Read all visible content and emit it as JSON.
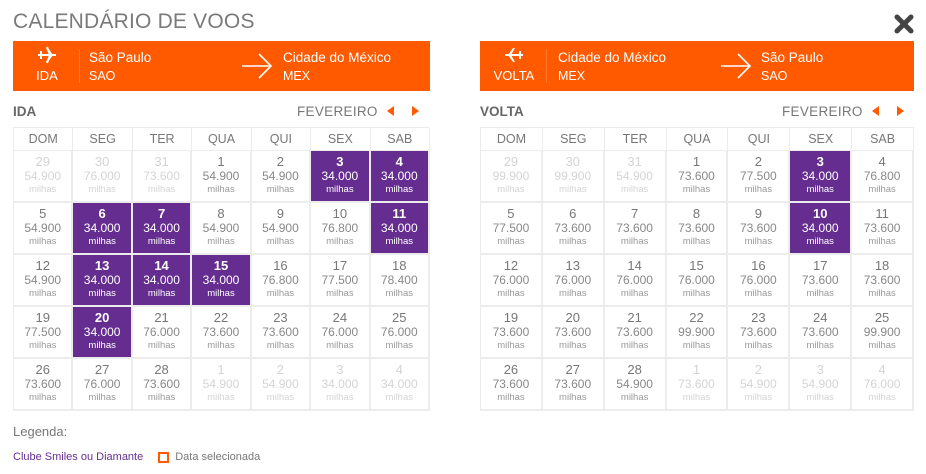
{
  "title": "CALENDÁRIO DE VOOS",
  "close_icon": "close-x-icon",
  "colors": {
    "brand_orange": "#ff5a00",
    "club_purple": "#662d91"
  },
  "weekdays": [
    "DOM",
    "SEG",
    "TER",
    "QUA",
    "QUI",
    "SEX",
    "SAB"
  ],
  "unit": "milhas",
  "ida": {
    "direction_label": "IDA",
    "icon": "plane-departure-icon",
    "origin": {
      "city": "São Paulo",
      "code": "SAO"
    },
    "destination": {
      "city": "Cidade do México",
      "code": "MEX"
    },
    "section_label": "IDA",
    "month": "FEVEREIRO",
    "days": [
      {
        "day": "29",
        "price": "54.900",
        "other": true
      },
      {
        "day": "30",
        "price": "76.000",
        "other": true
      },
      {
        "day": "31",
        "price": "73.600",
        "other": true
      },
      {
        "day": "1",
        "price": "54.900"
      },
      {
        "day": "2",
        "price": "54.900"
      },
      {
        "day": "3",
        "price": "34.000",
        "club": true
      },
      {
        "day": "4",
        "price": "34.000",
        "club": true
      },
      {
        "day": "5",
        "price": "54.900"
      },
      {
        "day": "6",
        "price": "34.000",
        "club": true
      },
      {
        "day": "7",
        "price": "34.000",
        "club": true
      },
      {
        "day": "8",
        "price": "54.900"
      },
      {
        "day": "9",
        "price": "54.900"
      },
      {
        "day": "10",
        "price": "76.800"
      },
      {
        "day": "11",
        "price": "34.000",
        "club": true
      },
      {
        "day": "12",
        "price": "54.900"
      },
      {
        "day": "13",
        "price": "34.000",
        "club": true
      },
      {
        "day": "14",
        "price": "34.000",
        "club": true
      },
      {
        "day": "15",
        "price": "34.000",
        "club": true
      },
      {
        "day": "16",
        "price": "76.800"
      },
      {
        "day": "17",
        "price": "77.500"
      },
      {
        "day": "18",
        "price": "78.400"
      },
      {
        "day": "19",
        "price": "77.500"
      },
      {
        "day": "20",
        "price": "34.000",
        "club": true
      },
      {
        "day": "21",
        "price": "76.000"
      },
      {
        "day": "22",
        "price": "73.600"
      },
      {
        "day": "23",
        "price": "73.600"
      },
      {
        "day": "24",
        "price": "76.000"
      },
      {
        "day": "25",
        "price": "76.000"
      },
      {
        "day": "26",
        "price": "73.600"
      },
      {
        "day": "27",
        "price": "76.000"
      },
      {
        "day": "28",
        "price": "73.600"
      },
      {
        "day": "1",
        "price": "54.900",
        "other": true
      },
      {
        "day": "2",
        "price": "54.900",
        "other": true
      },
      {
        "day": "3",
        "price": "34.000",
        "other": true
      },
      {
        "day": "4",
        "price": "34.000",
        "other": true
      }
    ]
  },
  "volta": {
    "direction_label": "VOLTA",
    "icon": "plane-return-icon",
    "origin": {
      "city": "Cidade do México",
      "code": "MEX"
    },
    "destination": {
      "city": "São Paulo",
      "code": "SAO"
    },
    "section_label": "VOLTA",
    "month": "FEVEREIRO",
    "days": [
      {
        "day": "29",
        "price": "99.900",
        "other": true
      },
      {
        "day": "30",
        "price": "99.900",
        "other": true
      },
      {
        "day": "31",
        "price": "54.900",
        "other": true
      },
      {
        "day": "1",
        "price": "73.600"
      },
      {
        "day": "2",
        "price": "77.500"
      },
      {
        "day": "3",
        "price": "34.000",
        "club": true
      },
      {
        "day": "4",
        "price": "76.800"
      },
      {
        "day": "5",
        "price": "77.500"
      },
      {
        "day": "6",
        "price": "73.600"
      },
      {
        "day": "7",
        "price": "73.600"
      },
      {
        "day": "8",
        "price": "73.600"
      },
      {
        "day": "9",
        "price": "73.600"
      },
      {
        "day": "10",
        "price": "34.000",
        "club": true
      },
      {
        "day": "11",
        "price": "73.600"
      },
      {
        "day": "12",
        "price": "76.000"
      },
      {
        "day": "13",
        "price": "76.000"
      },
      {
        "day": "14",
        "price": "76.000"
      },
      {
        "day": "15",
        "price": "76.000"
      },
      {
        "day": "16",
        "price": "76.000"
      },
      {
        "day": "17",
        "price": "73.600"
      },
      {
        "day": "18",
        "price": "73.600"
      },
      {
        "day": "19",
        "price": "73.600"
      },
      {
        "day": "20",
        "price": "73.600"
      },
      {
        "day": "21",
        "price": "73.600"
      },
      {
        "day": "22",
        "price": "99.900"
      },
      {
        "day": "23",
        "price": "73.600"
      },
      {
        "day": "24",
        "price": "73.600"
      },
      {
        "day": "25",
        "price": "99.900"
      },
      {
        "day": "26",
        "price": "73.600"
      },
      {
        "day": "27",
        "price": "73.600"
      },
      {
        "day": "28",
        "price": "54.900"
      },
      {
        "day": "1",
        "price": "73.600",
        "other": true
      },
      {
        "day": "2",
        "price": "54.900",
        "other": true
      },
      {
        "day": "3",
        "price": "54.900",
        "other": true
      },
      {
        "day": "4",
        "price": "76.000",
        "other": true
      }
    ]
  },
  "legend": {
    "title": "Legenda:",
    "club_label": "Clube Smiles ou Diamante",
    "selected_label": "Data selecionada"
  }
}
